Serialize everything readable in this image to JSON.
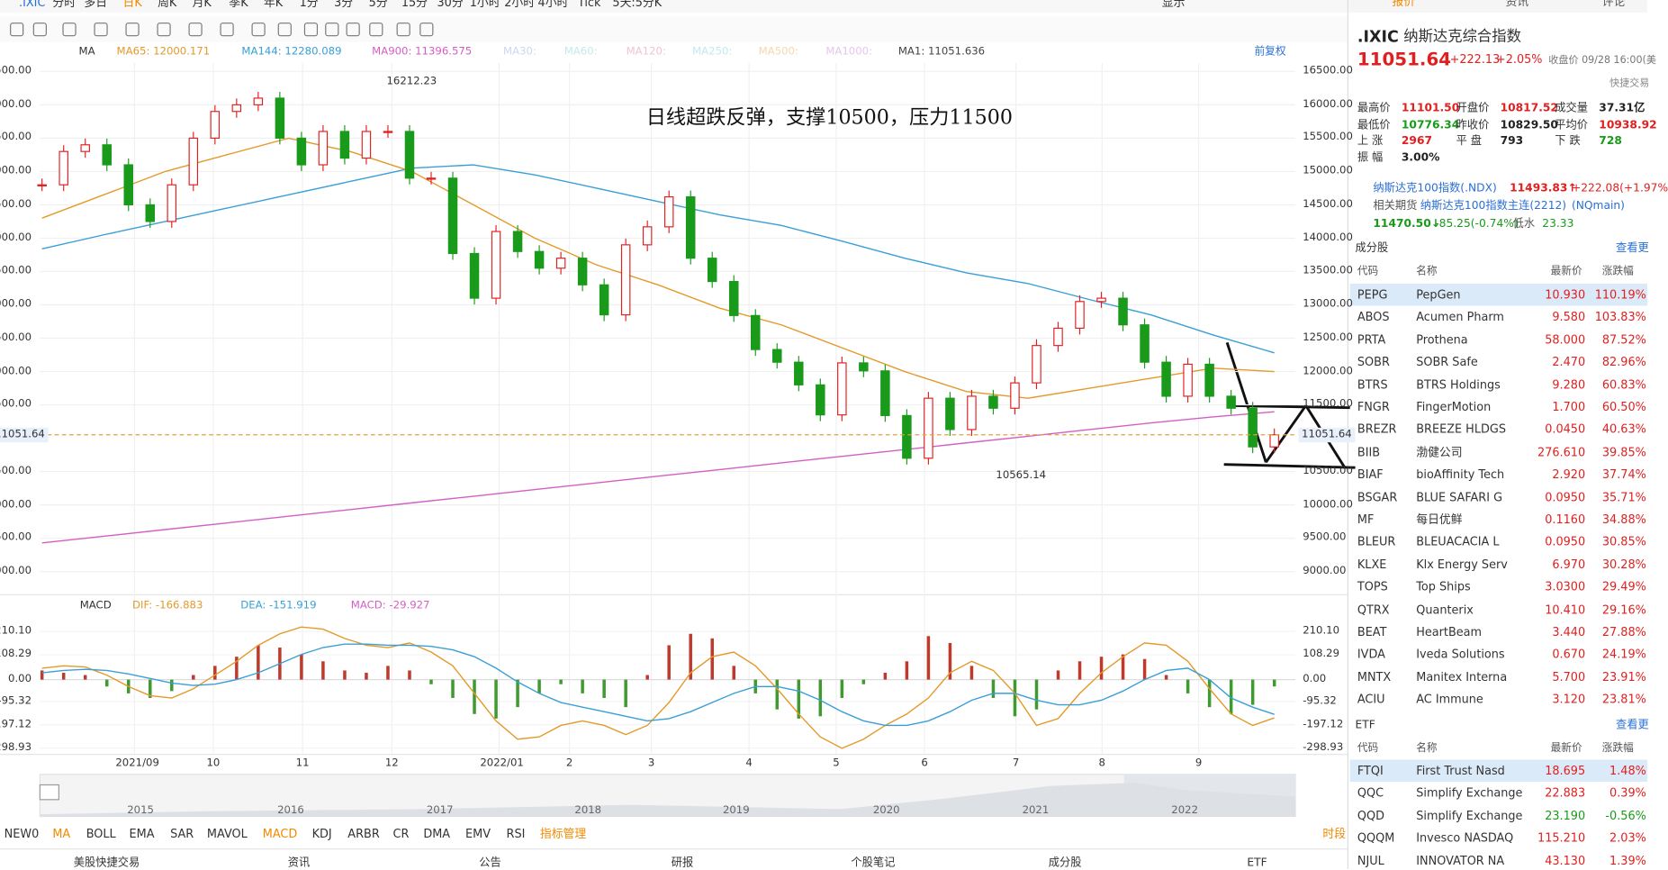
{
  "toolbar": {
    "symbol": ".IXIC",
    "periods": [
      "分时",
      "多日",
      "日K",
      "周K",
      "月K",
      "季K",
      "年K",
      "1分",
      "3分",
      "5分",
      "15分",
      "30分",
      "1小时",
      "2小时",
      "4小时",
      "Tick",
      "5天:5分K"
    ],
    "active_period": 2,
    "display": "显示"
  },
  "chart": {
    "ma_label": "MA",
    "ma_items": [
      {
        "text": "MA65: 12000.171",
        "color": "#e39a2b"
      },
      {
        "text": "MA144: 12280.089",
        "color": "#3a9fd6"
      },
      {
        "text": "MA900: 11396.575",
        "color": "#d45fc4"
      },
      {
        "text": "MA30:",
        "color": "#c9d8f0"
      },
      {
        "text": "MA60:",
        "color": "#c4eaea"
      },
      {
        "text": "MA120:",
        "color": "#f2c4cf"
      },
      {
        "text": "MA250:",
        "color": "#c1e9f2"
      },
      {
        "text": "MA500:",
        "color": "#f3d9ad"
      },
      {
        "text": "MA1000:",
        "color": "#e5c6ee"
      },
      {
        "text": "MA1: 11051.636",
        "color": "#444444"
      }
    ],
    "restore": "前复权",
    "price_axis": [
      {
        "value": 16500,
        "label": "16500.00"
      },
      {
        "value": 16000,
        "label": "16000.00"
      },
      {
        "value": 15500,
        "label": "15500.00"
      },
      {
        "value": 15000,
        "label": "15000.00"
      },
      {
        "value": 14500,
        "label": "14500.00"
      },
      {
        "value": 14000,
        "label": "14000.00"
      },
      {
        "value": 13500,
        "label": "13500.00"
      },
      {
        "value": 13000,
        "label": "13000.00"
      },
      {
        "value": 12500,
        "label": "12500.00"
      },
      {
        "value": 12000,
        "label": "12000.00"
      },
      {
        "value": 11500,
        "label": "11500.00"
      },
      {
        "value": 10500,
        "label": "10500.00"
      },
      {
        "value": 10000,
        "label": "10000.00"
      },
      {
        "value": 9500,
        "label": "9500.00"
      },
      {
        "value": 9000,
        "label": "9000.00"
      }
    ],
    "last_price": {
      "value": 11051.64,
      "label": "11051.64"
    },
    "high_label": "16212.23",
    "low_label": "10565.14",
    "annotation": "日线超跌反弹，支撑10500，压力11500",
    "closes": [
      14800,
      15300,
      15400,
      15100,
      14500,
      14250,
      14800,
      15500,
      15900,
      16000,
      16100,
      15500,
      15100,
      15600,
      15200,
      15600,
      15600,
      14900,
      14900,
      13770,
      13100,
      14100,
      13800,
      13550,
      13700,
      13300,
      12850,
      13900,
      14170,
      14620,
      13700,
      13350,
      12840,
      12330,
      12140,
      11800,
      11350,
      12130,
      12010,
      11340,
      10700,
      11600,
      11130,
      11630,
      11450,
      11830,
      12390,
      12650,
      13050,
      13100,
      12700,
      12140,
      11630,
      12110,
      11630,
      11450,
      10870,
      11051.64
    ],
    "ma65": [
      14300,
      14650,
      15000,
      15250,
      15500,
      15300,
      15000,
      14500,
      14000,
      13600,
      13300,
      12950,
      12700,
      12350,
      12000,
      11700,
      11600,
      11750,
      11900,
      12050,
      12000.171
    ],
    "ma144": [
      13840,
      14050,
      14250,
      14450,
      14650,
      14850,
      15050,
      15100,
      14950,
      14750,
      14550,
      14350,
      14190,
      13950,
      13700,
      13480,
      13320,
      13080,
      12850,
      12550,
      12280.089
    ],
    "ma900": [
      9430,
      9530,
      9630,
      9730,
      9830,
      9930,
      10030,
      10130,
      10230,
      10330,
      10430,
      10530,
      10630,
      10730,
      10830,
      10930,
      11030,
      11130,
      11230,
      11320,
      11396.575
    ],
    "months": [
      "2021/09",
      "10",
      "11",
      "12",
      "2022/01",
      "2",
      "3",
      "4",
      "5",
      "6",
      "7",
      "8",
      "9"
    ],
    "years": [
      "2015",
      "2016",
      "2017",
      "2018",
      "2019",
      "2020",
      "2021",
      "2022"
    ]
  },
  "macd": {
    "label": "MACD",
    "items": [
      {
        "text": "DIF: -166.883",
        "color": "#e39a2b"
      },
      {
        "text": "DEA: -151.919",
        "color": "#3a9fd6"
      },
      {
        "text": "MACD: -29.927",
        "color": "#d45fc4"
      }
    ],
    "axis": [
      {
        "value": 210.1,
        "label": "210.10"
      },
      {
        "value": 108.29,
        "label": "108.29"
      },
      {
        "value": 0,
        "label": "0.00"
      },
      {
        "value": -95.32,
        "label": "-95.32"
      },
      {
        "value": -197.12,
        "label": "-197.12"
      },
      {
        "value": -298.93,
        "label": "-298.93"
      }
    ],
    "hist": [
      40,
      30,
      20,
      -30,
      -60,
      -80,
      -50,
      20,
      60,
      100,
      150,
      140,
      110,
      80,
      40,
      30,
      60,
      40,
      -20,
      -80,
      -150,
      -170,
      -120,
      -60,
      -20,
      -60,
      -80,
      -120,
      20,
      150,
      200,
      180,
      60,
      -60,
      -130,
      -170,
      -160,
      -80,
      -20,
      30,
      80,
      190,
      160,
      60,
      -80,
      -160,
      -130,
      40,
      80,
      100,
      110,
      90,
      20,
      -60,
      -120,
      -150,
      -110,
      -29.927
    ],
    "dif": [
      50,
      60,
      55,
      20,
      -30,
      -70,
      -80,
      -40,
      20,
      80,
      150,
      200,
      230,
      220,
      180,
      150,
      140,
      160,
      120,
      60,
      -60,
      -180,
      -260,
      -250,
      -200,
      -180,
      -200,
      -240,
      -200,
      -100,
      30,
      100,
      120,
      60,
      -40,
      -150,
      -250,
      -300,
      -260,
      -200,
      -150,
      -80,
      30,
      80,
      40,
      -60,
      -200,
      -170,
      -60,
      30,
      100,
      160,
      150,
      80,
      -40,
      -150,
      -200,
      -166.883
    ],
    "dea": [
      30,
      40,
      45,
      40,
      25,
      5,
      -15,
      -25,
      -20,
      0,
      30,
      70,
      110,
      140,
      155,
      155,
      150,
      150,
      145,
      130,
      100,
      50,
      -10,
      -60,
      -100,
      -120,
      -140,
      -160,
      -180,
      -170,
      -140,
      -100,
      -60,
      -30,
      -30,
      -50,
      -90,
      -140,
      -180,
      -200,
      -200,
      -180,
      -140,
      -90,
      -60,
      -60,
      -90,
      -110,
      -110,
      -90,
      -50,
      0,
      40,
      50,
      0,
      -80,
      -120,
      -151.919
    ]
  },
  "indicators": [
    "NEW0",
    "MA",
    "BOLL",
    "EMA",
    "SAR",
    "MAVOL",
    "MACD",
    "KDJ",
    "ARBR",
    "CR",
    "DMA",
    "EMV",
    "RSI"
  ],
  "active_indicators": [
    1,
    6
  ],
  "indicator_manage": "指标管理",
  "period_btn": "时段",
  "bottom_tabs": [
    "美股快捷交易",
    "资讯",
    "公告",
    "研报",
    "个股笔记",
    "成分股",
    "ETF"
  ],
  "sidebar": {
    "tabs": [
      "报价",
      "资讯",
      "评论"
    ],
    "symbol": ".IXIC",
    "name": "纳斯达克综合指数",
    "price": "11051.64",
    "change": "+222.13",
    "pct": "+2.05%",
    "close_time": "收盘价 09/28 16:00(美",
    "quick": "快捷交易",
    "stats": [
      {
        "label": "最高价",
        "value": "11101.50",
        "color": "#e02020"
      },
      {
        "label": "开盘价",
        "value": "10817.52",
        "color": "#e02020"
      },
      {
        "label": "成交量",
        "value": "37.31亿",
        "color": "#222"
      },
      {
        "label": "最低价",
        "value": "10776.34",
        "color": "#1a9a1a"
      },
      {
        "label": "昨收价",
        "value": "10829.50",
        "color": "#222"
      },
      {
        "label": "平均价",
        "value": "10938.92",
        "color": "#e02020"
      },
      {
        "label": "上 涨",
        "value": "2967",
        "color": "#e02020"
      },
      {
        "label": "平 盘",
        "value": "793",
        "color": "#222"
      },
      {
        "label": "下 跌",
        "value": "728",
        "color": "#1a9a1a"
      },
      {
        "label": "振 幅",
        "value": "3.00%",
        "color": "#222"
      }
    ],
    "ndx_name": "纳斯达克100指数(.NDX)",
    "ndx_price": "11493.83↑",
    "ndx_change": "+222.08(+1.97%",
    "fut_label": "相关期货",
    "fut_name": "纳斯达克100指数主连(2212)",
    "fut_code": "(NQmain)",
    "fut_price": "11470.50↓",
    "fut_change": "-85.25(-0.74%)",
    "fut_basis_label": "低水",
    "fut_basis": "23.33",
    "constituents": {
      "title": "成分股",
      "more": "查看更",
      "headers": [
        "代码",
        "名称",
        "最新价",
        "涨跌幅"
      ],
      "rows": [
        [
          "PEPG",
          "PepGen",
          "10.930",
          "110.19%"
        ],
        [
          "ABOS",
          "Acumen Pharm",
          "9.580",
          "103.83%"
        ],
        [
          "PRTA",
          "Prothena",
          "58.000",
          "87.52%"
        ],
        [
          "SOBR",
          "SOBR Safe",
          "2.470",
          "82.96%"
        ],
        [
          "BTRS",
          "BTRS Holdings",
          "9.280",
          "60.83%"
        ],
        [
          "FNGR",
          "FingerMotion",
          "1.700",
          "60.50%"
        ],
        [
          "BREZR",
          "BREEZE HLDGS",
          "0.0450",
          "40.63%"
        ],
        [
          "BIIB",
          "渤健公司",
          "276.610",
          "39.85%"
        ],
        [
          "BIAF",
          "bioAffinity Tech",
          "2.920",
          "37.74%"
        ],
        [
          "BSGAR",
          "BLUE SAFARI G",
          "0.0950",
          "35.71%"
        ],
        [
          "MF",
          "每日优鲜",
          "0.1160",
          "34.88%"
        ],
        [
          "BLEUR",
          "BLEUACACIA L",
          "0.0950",
          "30.85%"
        ],
        [
          "KLXE",
          "Klx Energy Serv",
          "6.970",
          "30.28%"
        ],
        [
          "TOPS",
          "Top Ships",
          "3.0300",
          "29.49%"
        ],
        [
          "QTRX",
          "Quanterix",
          "10.410",
          "29.16%"
        ],
        [
          "BEAT",
          "HeartBeam",
          "3.440",
          "27.88%"
        ],
        [
          "IVDA",
          "Iveda Solutions",
          "0.670",
          "24.19%"
        ],
        [
          "MNTX",
          "Manitex Interna",
          "5.700",
          "23.91%"
        ],
        [
          "ACIU",
          "AC Immune",
          "3.120",
          "23.81%"
        ]
      ]
    },
    "etf": {
      "title": "ETF",
      "more": "查看更",
      "headers": [
        "代码",
        "名称",
        "最新价",
        "涨跌幅"
      ],
      "rows": [
        [
          "FTQI",
          "First Trust Nasd",
          "18.695",
          "1.48%"
        ],
        [
          "QQC",
          "Simplify Exchange",
          "22.883",
          "0.39%"
        ],
        [
          "QQD",
          "Simplify Exchange",
          "23.190",
          "-0.56%"
        ],
        [
          "QQQM",
          "Invesco NASDAQ",
          "115.210",
          "2.03%"
        ],
        [
          "NJUL",
          "INNOVATOR NA",
          "43.130",
          "1.39%"
        ]
      ]
    }
  }
}
